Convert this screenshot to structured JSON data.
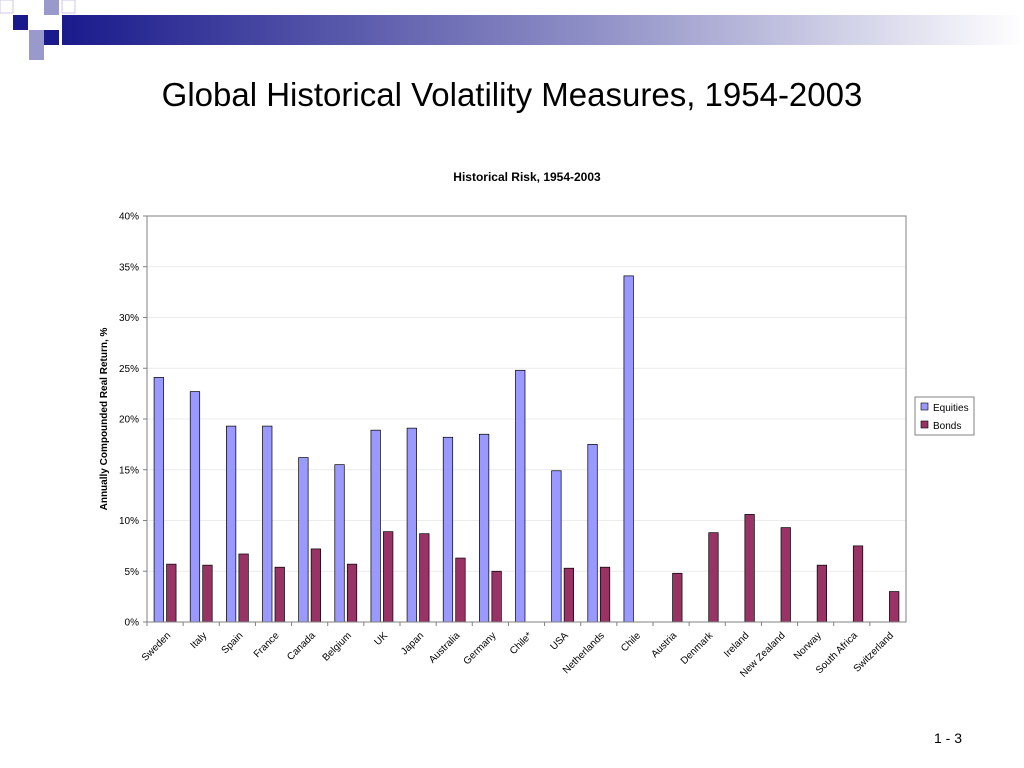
{
  "slide": {
    "title": "Global Historical Volatility Measures, 1954-2003",
    "number": "1 - 3"
  },
  "colors": {
    "equities": "#9999FF",
    "bonds": "#993366",
    "accent_dark": "#1a1a8c",
    "accent_light": "#9999cc"
  },
  "chart_data": {
    "type": "bar",
    "title": "Historical Risk, 1954-2003",
    "ylabel": "Annually Compounded Real Return, %",
    "xlabel": "",
    "ylim": [
      0,
      0.4
    ],
    "yticks": [
      "0%",
      "5%",
      "10%",
      "15%",
      "20%",
      "25%",
      "30%",
      "35%",
      "40%"
    ],
    "grid": true,
    "legend_position": "right",
    "categories": [
      "Sweden",
      "Italy",
      "Spain",
      "France",
      "Canada",
      "Belgium",
      "UK",
      "Japan",
      "Australia",
      "Germany",
      "Chile*",
      "USA",
      "Netherlands",
      "Chile",
      "Austria",
      "Denmark",
      "Ireland",
      "New Zealand",
      "Norway",
      "South Africa",
      "Switzerland"
    ],
    "series": [
      {
        "name": "Equities",
        "values": [
          0.241,
          0.227,
          0.193,
          0.193,
          0.162,
          0.155,
          0.189,
          0.191,
          0.182,
          0.185,
          0.248,
          0.149,
          0.175,
          0.341,
          null,
          null,
          null,
          null,
          null,
          null,
          null
        ]
      },
      {
        "name": "Bonds",
        "values": [
          0.057,
          0.056,
          0.067,
          0.054,
          0.072,
          0.057,
          0.089,
          0.087,
          0.063,
          0.05,
          null,
          0.053,
          0.054,
          null,
          0.048,
          0.088,
          0.106,
          0.093,
          0.056,
          0.075,
          0.03
        ]
      }
    ]
  }
}
